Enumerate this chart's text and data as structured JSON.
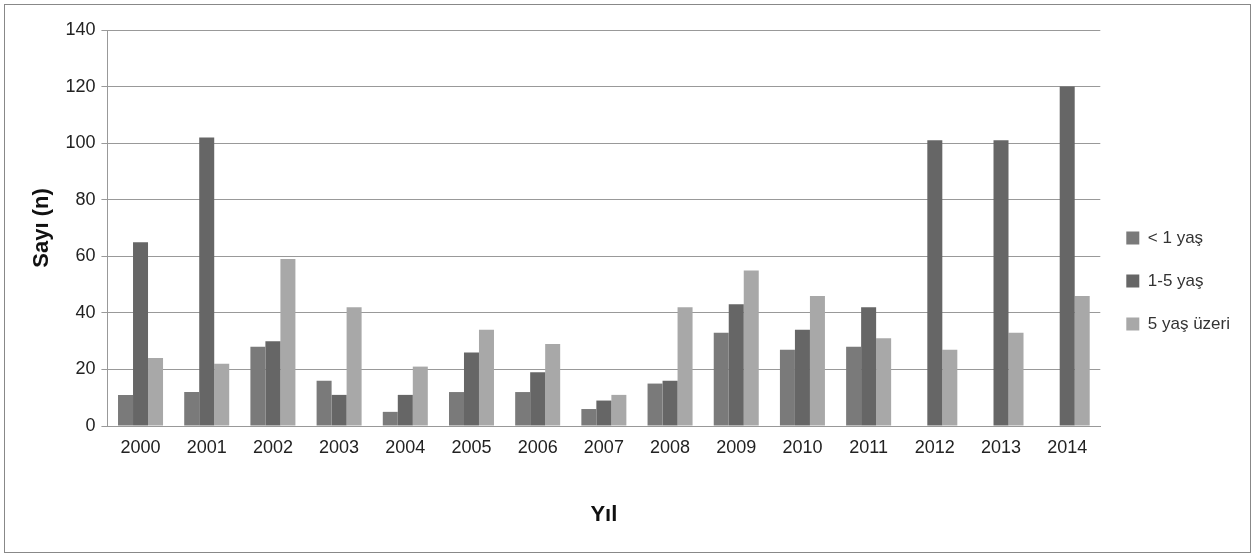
{
  "chart_data": {
    "type": "bar",
    "xlabel": "Yıl",
    "ylabel": "Sayı (n)",
    "categories": [
      "2000",
      "2001",
      "2002",
      "2003",
      "2004",
      "2005",
      "2006",
      "2007",
      "2008",
      "2009",
      "2010",
      "2011",
      "2012",
      "2013",
      "2014"
    ],
    "series": [
      {
        "name": "< 1 yaş",
        "color": "#7a7a7a",
        "values": [
          11,
          12,
          28,
          16,
          5,
          12,
          12,
          6,
          15,
          33,
          27,
          28,
          null,
          null,
          null
        ]
      },
      {
        "name": "1-5 yaş",
        "color": "#666666",
        "values": [
          65,
          102,
          30,
          11,
          11,
          26,
          19,
          9,
          16,
          43,
          34,
          42,
          101,
          101,
          120
        ]
      },
      {
        "name": "5 yaş üzeri",
        "color": "#a8a8a8",
        "values": [
          24,
          22,
          59,
          42,
          21,
          34,
          29,
          11,
          42,
          55,
          46,
          31,
          27,
          33,
          46
        ]
      }
    ],
    "ylim": [
      0,
      140
    ],
    "yticks": [
      0,
      20,
      40,
      60,
      80,
      100,
      120,
      140
    ],
    "grid": "y",
    "legend": "right"
  }
}
